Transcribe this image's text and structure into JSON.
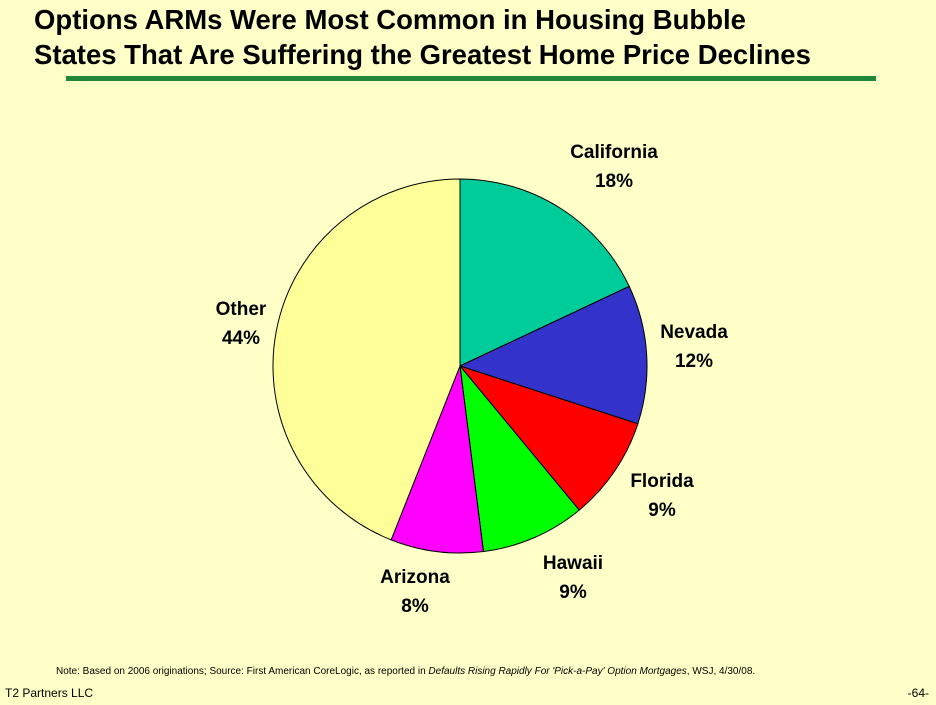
{
  "slide": {
    "title_line1": "Options ARMs Were Most Common in Housing Bubble",
    "title_line2": "States That Are Suffering the Greatest Home Price Declines",
    "accent_color": "#22863a",
    "background_color": "#ffffc8"
  },
  "chart_data": {
    "type": "pie",
    "title": "",
    "start": "12 o'clock",
    "direction": "clockwise",
    "slices": [
      {
        "label": "California",
        "value": 18,
        "value_label": "18%",
        "color": "#00cc99"
      },
      {
        "label": "Nevada",
        "value": 12,
        "value_label": "12%",
        "color": "#3333cc"
      },
      {
        "label": "Florida",
        "value": 9,
        "value_label": "9%",
        "color": "#ff0000"
      },
      {
        "label": "Hawaii",
        "value": 9,
        "value_label": "9%",
        "color": "#00ff00"
      },
      {
        "label": "Arizona",
        "value": 8,
        "value_label": "8%",
        "color": "#ff00ff"
      },
      {
        "label": "Other",
        "value": 44,
        "value_label": "44%",
        "color": "#ffff99"
      }
    ]
  },
  "note": {
    "prefix": "Note: Based on 2006 originations; Source: First American CoreLogic, as reported in ",
    "italic": "Defaults Rising Rapidly For 'Pick-a-Pay' Option Mortgages",
    "suffix": ", WSJ, 4/30/08."
  },
  "footer": {
    "company": "T2 Partners LLC",
    "page_number": "-64-"
  }
}
